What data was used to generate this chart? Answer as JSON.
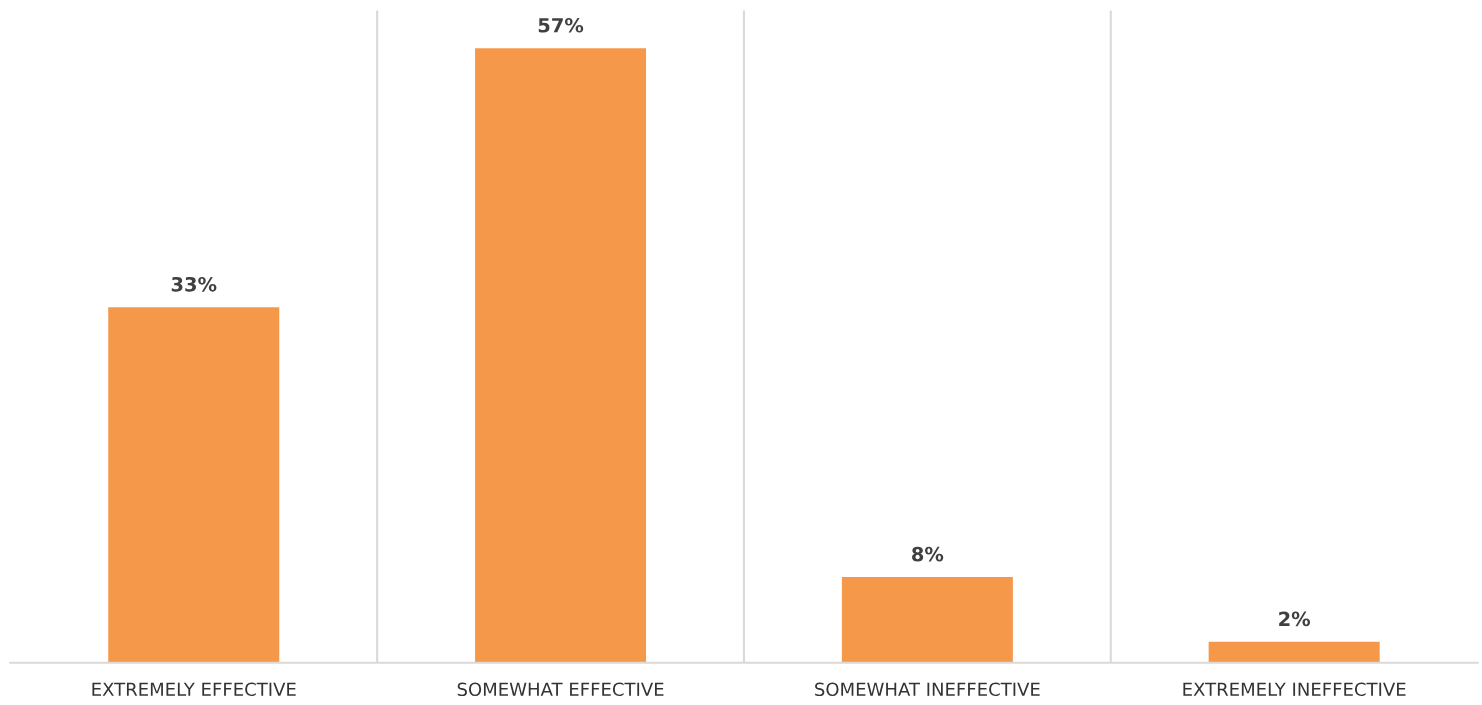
{
  "chart_data": {
    "type": "bar",
    "categories": [
      "EXTREMELY EFFECTIVE",
      "SOMEWHAT EFFECTIVE",
      "SOMEWHAT INEFFECTIVE",
      "EXTREMELY INEFFECTIVE"
    ],
    "values": [
      33,
      57,
      8,
      2
    ],
    "value_labels": [
      "33%",
      "57%",
      "8%",
      "2%"
    ],
    "color": "#f5984a",
    "grid": "x",
    "legend": false
  }
}
